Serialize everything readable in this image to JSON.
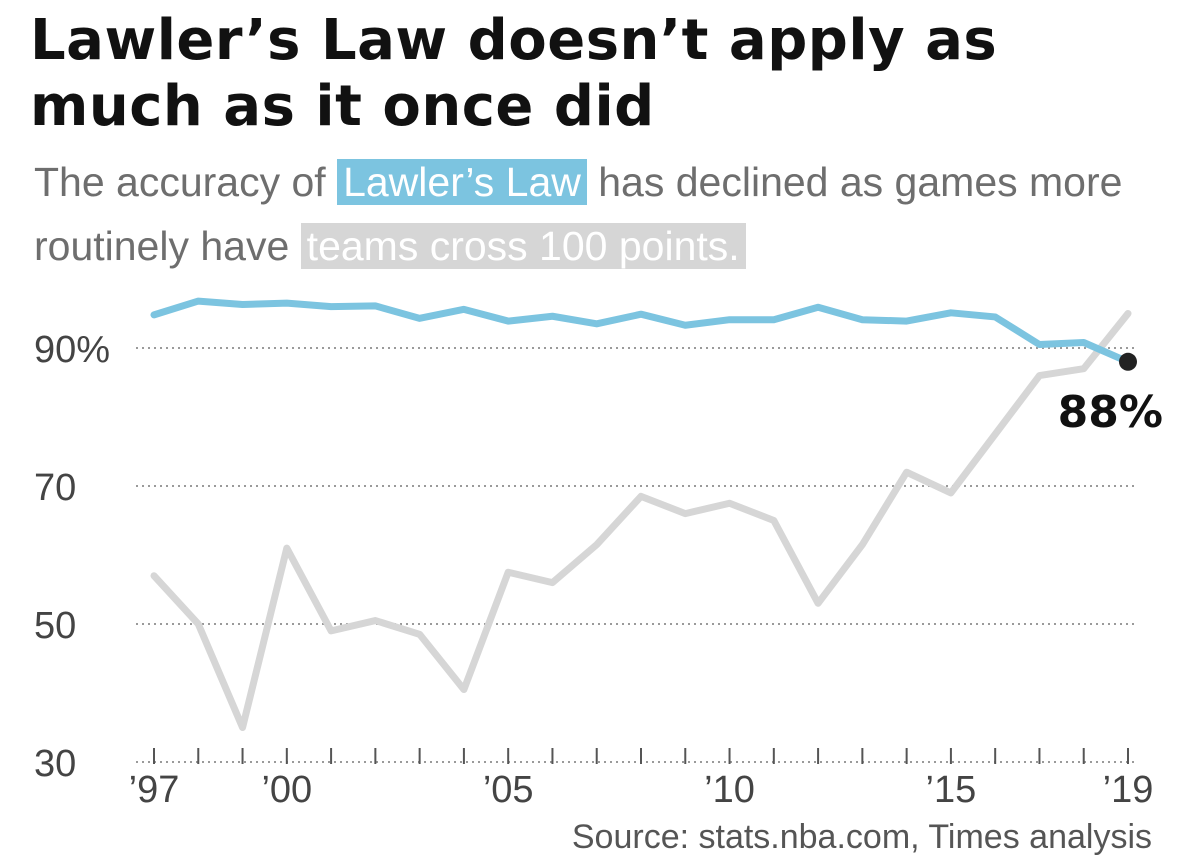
{
  "title": "Lawler’s Law doesn’t apply as much as it once did",
  "subtitle": {
    "part1": "The accuracy of ",
    "highlight_blue": "Lawler’s Law",
    "part2": " has declined as games more routinely have ",
    "highlight_gray": "teams cross 100 points."
  },
  "source": "Source: stats.nba.com, Times analysis",
  "colors": {
    "accuracy": "#7cc4e0",
    "cross100": "#d6d6d6",
    "grid": "#9a9a9a",
    "text": "#111111",
    "muted": "#6e6e6e"
  },
  "chart_data": {
    "type": "line",
    "x": [
      1997,
      1998,
      1999,
      2000,
      2001,
      2002,
      2003,
      2004,
      2005,
      2006,
      2007,
      2008,
      2009,
      2010,
      2011,
      2012,
      2013,
      2014,
      2015,
      2016,
      2017,
      2018,
      2019
    ],
    "series": [
      {
        "key": "accuracy",
        "values": [
          94.8,
          96.8,
          96.3,
          96.5,
          96.0,
          96.1,
          94.3,
          95.6,
          93.9,
          94.6,
          93.5,
          94.9,
          93.3,
          94.1,
          94.1,
          95.9,
          94.1,
          93.9,
          95.1,
          94.5,
          90.5,
          90.8,
          88.0
        ]
      },
      {
        "key": "cross100",
        "values": [
          57,
          50,
          35,
          61,
          49,
          50.5,
          48.5,
          40.5,
          57.5,
          56,
          61.5,
          68.5,
          66,
          67.5,
          65,
          53,
          61.5,
          72,
          69,
          77.5,
          86,
          87,
          95
        ]
      }
    ],
    "end_label": "88%",
    "y_ticks": [
      {
        "value": 90,
        "label": "90%"
      },
      {
        "value": 70,
        "label": "70"
      },
      {
        "value": 50,
        "label": "50"
      },
      {
        "value": 30,
        "label": "30"
      }
    ],
    "x_tick_labels": [
      {
        "year": 1997,
        "label": "’97"
      },
      {
        "year": 2000,
        "label": "’00"
      },
      {
        "year": 2005,
        "label": "’05"
      },
      {
        "year": 2010,
        "label": "’10"
      },
      {
        "year": 2015,
        "label": "’15"
      },
      {
        "year": 2019,
        "label": "’19"
      }
    ],
    "ylim": [
      30,
      97
    ],
    "xlim": [
      1997,
      2019
    ],
    "grid": true,
    "xlabel": "",
    "ylabel": ""
  }
}
